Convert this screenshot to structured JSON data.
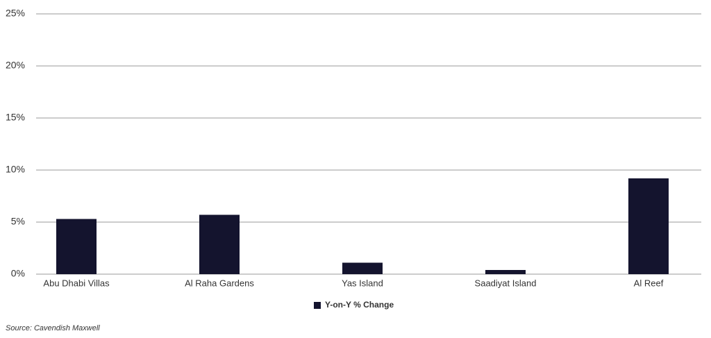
{
  "chart_data": {
    "type": "bar",
    "categories": [
      "Abu Dhabi Villas",
      "Al Raha Gardens",
      "Yas Island",
      "Saadiyat Island",
      "Al Reef"
    ],
    "series": [
      {
        "name": "Y-on-Y % Change",
        "color": "#14142e",
        "values": [
          5.3,
          5.7,
          1.1,
          0.4,
          9.2
        ]
      }
    ],
    "ylim": [
      0,
      25
    ],
    "yticks": [
      {
        "value": 0,
        "label": "0%"
      },
      {
        "value": 5,
        "label": "5%"
      },
      {
        "value": 10,
        "label": "10%"
      },
      {
        "value": 15,
        "label": "15%"
      },
      {
        "value": 20,
        "label": "20%"
      },
      {
        "value": 25,
        "label": "25%"
      }
    ],
    "grid": true,
    "legend": "bottom",
    "source": "Source: Cavendish Maxwell"
  }
}
